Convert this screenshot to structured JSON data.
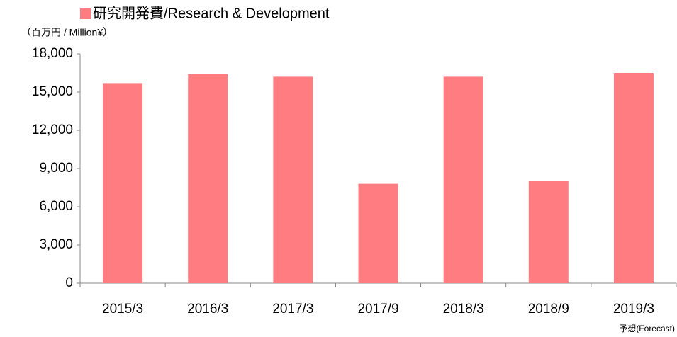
{
  "chart_data": {
    "type": "bar",
    "title": "研究開発費/Research & Development",
    "y_axis_label": "（百万円 / Million¥）",
    "annotation": "予想(Forecast)",
    "categories": [
      "2015/3",
      "2016/3",
      "2017/3",
      "2017/9",
      "2018/3",
      "2018/9",
      "2019/3"
    ],
    "values": [
      15700,
      16400,
      16200,
      7800,
      16200,
      8000,
      16500
    ],
    "color": "#ff7c80",
    "ylim": [
      0,
      18000
    ],
    "yticks": [
      {
        "value": 0,
        "label": "0"
      },
      {
        "value": 3000,
        "label": "3,000"
      },
      {
        "value": 6000,
        "label": "6,000"
      },
      {
        "value": 9000,
        "label": "9,000"
      },
      {
        "value": 12000,
        "label": "12,000"
      },
      {
        "value": 15000,
        "label": "15,000"
      },
      {
        "value": 18000,
        "label": "18,000"
      }
    ],
    "grid": false
  }
}
